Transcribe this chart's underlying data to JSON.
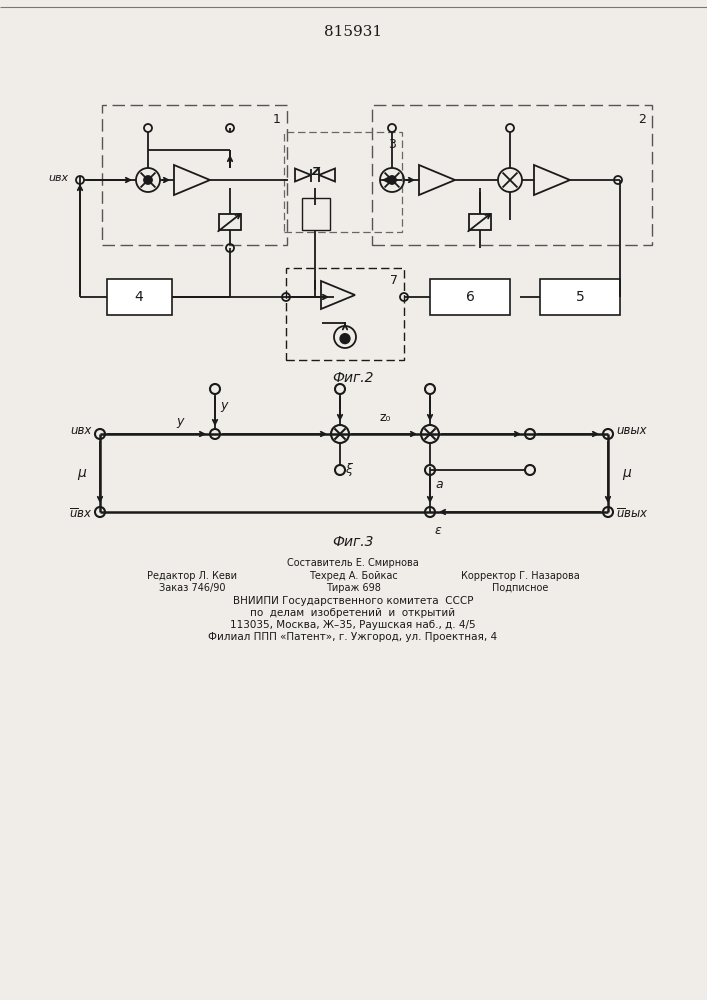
{
  "title": "815931",
  "bg_color": "#f0ede8",
  "fig2_label": "Фиг.2",
  "fig3_label": "Фиг.3",
  "footer_line0": "Составитель Е. Смирнова",
  "footer_line1_left": "Редактор Л. Кеви",
  "footer_line1_mid": "Техред А. Бойкас",
  "footer_line1_right": "Корректор Г. Назарова",
  "footer_line2_left": "Заказ 746/90",
  "footer_line2_mid": "Тираж 698",
  "footer_line2_right": "Подписное",
  "footer_line3": "ВНИИПИ Государственного комитета  СССР",
  "footer_line4": "по  делам  изобретений  и  открытий",
  "footer_line5": "113035, Москва, Ж–35, Раушская наб., д. 4/5",
  "footer_line6": "Филиал ППП «Патент», г. Ужгород, ул. Проектная, 4",
  "line_color": "#1a1a1a"
}
